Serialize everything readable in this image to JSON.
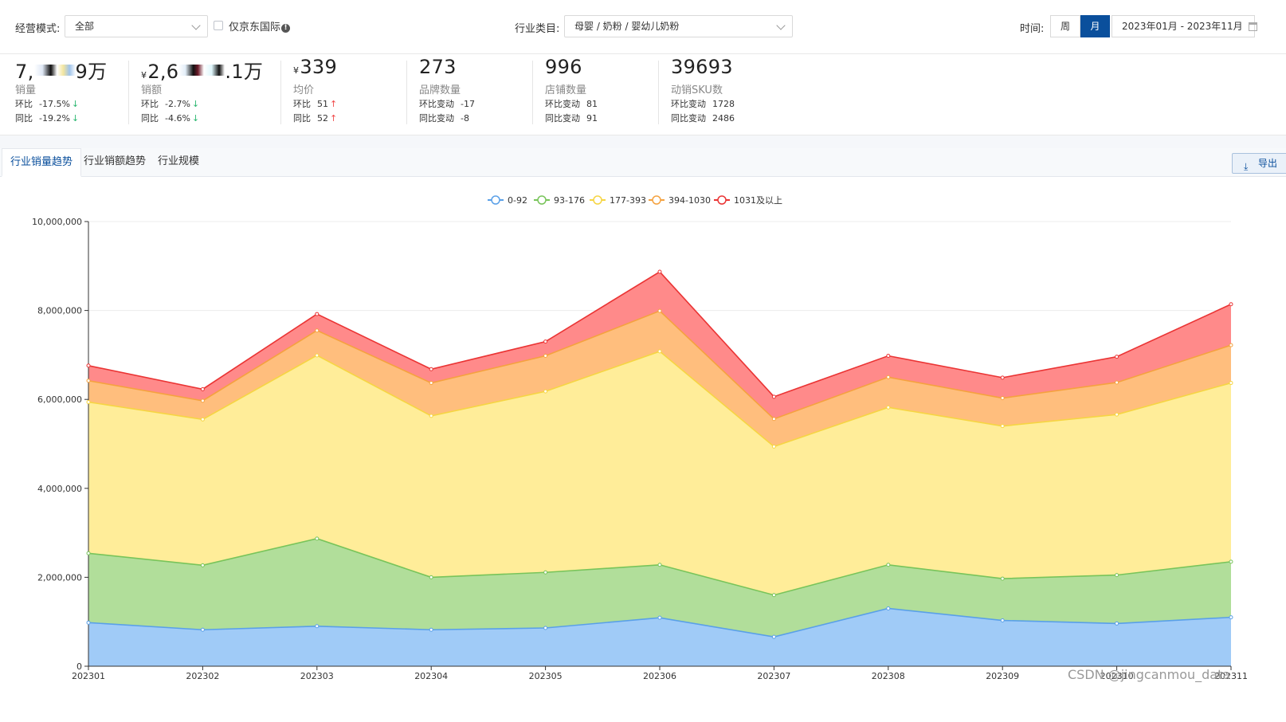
{
  "filters": {
    "mode_label": "经营模式:",
    "mode_value": "全部",
    "jd_intl_label": "仅京东国际",
    "category_label": "行业类目:",
    "category_value": "母婴 / 奶粉 / 婴幼儿奶粉",
    "time_label": "时间:",
    "week_label": "周",
    "month_label": "月",
    "date_range": "2023年01月 - 2023年11月"
  },
  "kpis": {
    "sales_volume": {
      "value_left": "7,",
      "value_right": "9万",
      "label": "销量",
      "row1_label": "环比",
      "row1_value": "-17.5%",
      "row2_label": "同比",
      "row2_value": "-19.2%"
    },
    "sales_amount": {
      "currency": "¥",
      "value_left": "2,6",
      "value_right": ".1万",
      "label": "销额",
      "row1_label": "环比",
      "row1_value": "-2.7%",
      "row2_label": "同比",
      "row2_value": "-4.6%"
    },
    "avg_price": {
      "currency": "¥",
      "value": "339",
      "label": "均价",
      "row1_label": "环比",
      "row1_value": "51",
      "row2_label": "同比",
      "row2_value": "52"
    },
    "brand_count": {
      "value": "273",
      "label": "品牌数量",
      "row1_label": "环比变动",
      "row1_value": "-17",
      "row2_label": "同比变动",
      "row2_value": "-8"
    },
    "store_count": {
      "value": "996",
      "label": "店铺数量",
      "row1_label": "环比变动",
      "row1_value": "81",
      "row2_label": "同比变动",
      "row2_value": "91"
    },
    "sku_count": {
      "value": "39693",
      "label": "动销SKU数",
      "row1_label": "环比变动",
      "row1_value": "1728",
      "row2_label": "同比变动",
      "row2_value": "2486"
    }
  },
  "tabs": {
    "volume_trend": "行业销量趋势",
    "amount_trend": "行业销额趋势",
    "scale": "行业规模",
    "export": "导出"
  },
  "watermark": "CSDN @jingcanmou_data",
  "chart_data": {
    "type": "area",
    "stacked": true,
    "title": "",
    "xlabel": "",
    "ylabel": "",
    "ylim": [
      0,
      10000000
    ],
    "yticks": [
      0,
      2000000,
      4000000,
      6000000,
      8000000,
      10000000
    ],
    "ytick_labels": [
      "0",
      "2,000,000",
      "4,000,000",
      "6,000,000",
      "8,000,000",
      "10,000,000"
    ],
    "legend_position": "top-center",
    "categories": [
      "202301",
      "202302",
      "202303",
      "202304",
      "202305",
      "202306",
      "202307",
      "202308",
      "202309",
      "202310",
      "202311"
    ],
    "series": [
      {
        "name": "0-92",
        "color": "#5aa0e8",
        "fill": "#a0cbf7",
        "values": [
          980000,
          820000,
          900000,
          820000,
          860000,
          1090000,
          660000,
          1300000,
          1030000,
          960000,
          1100000
        ]
      },
      {
        "name": "93-176",
        "color": "#78c45a",
        "fill": "#b1de9a",
        "values": [
          1560000,
          1450000,
          1970000,
          1180000,
          1250000,
          1190000,
          940000,
          980000,
          940000,
          1090000,
          1250000
        ]
      },
      {
        "name": "177-393",
        "color": "#f6d543",
        "fill": "#ffed99",
        "values": [
          3400000,
          3280000,
          4120000,
          3630000,
          4070000,
          4800000,
          3340000,
          3540000,
          3430000,
          3610000,
          4020000
        ]
      },
      {
        "name": "394-1030",
        "color": "#f5a23f",
        "fill": "#ffbe7d",
        "values": [
          480000,
          420000,
          560000,
          740000,
          800000,
          910000,
          620000,
          680000,
          630000,
          720000,
          850000
        ]
      },
      {
        "name": "1031及以上",
        "color": "#ea3434",
        "fill": "#ff8a8a",
        "values": [
          340000,
          260000,
          370000,
          310000,
          320000,
          880000,
          500000,
          480000,
          460000,
          580000,
          920000
        ]
      }
    ]
  }
}
